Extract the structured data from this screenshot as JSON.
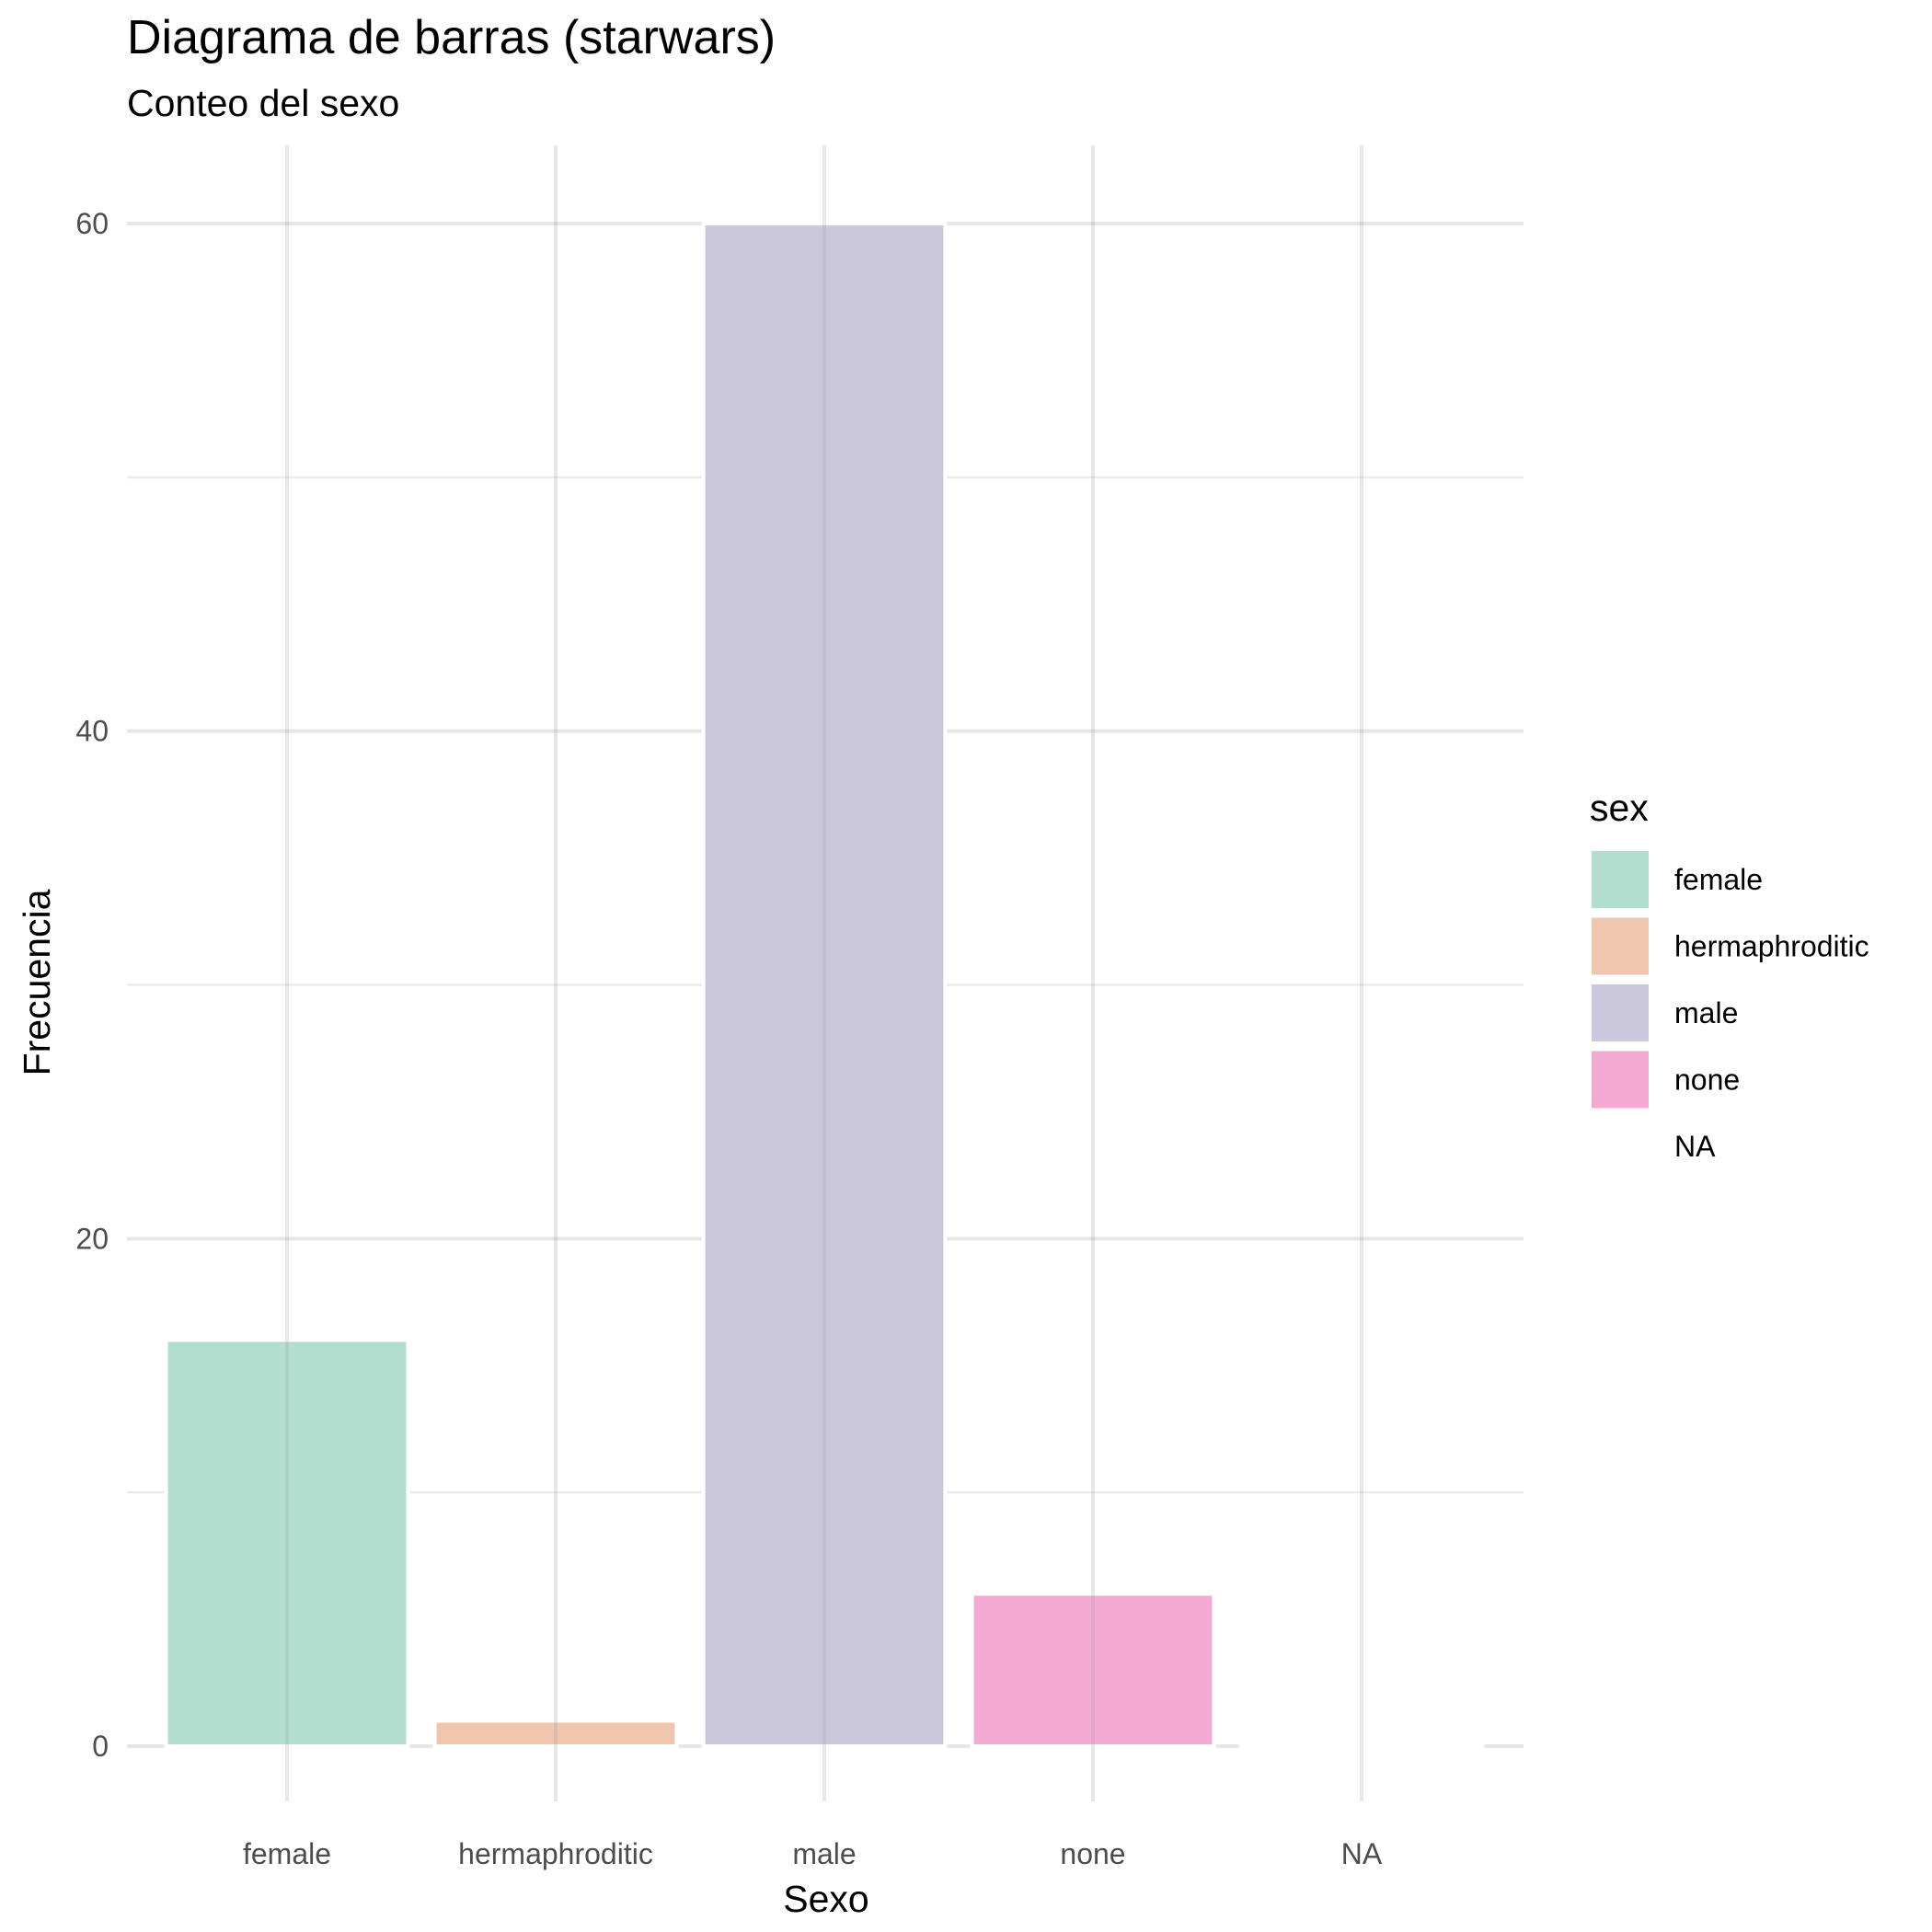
{
  "chart_data": {
    "type": "bar",
    "title": "Diagrama de barras (starwars)",
    "subtitle": "Conteo del sexo",
    "xlabel": "Sexo",
    "ylabel": "Frecuencia",
    "categories": [
      "female",
      "hermaphroditic",
      "male",
      "none",
      "NA"
    ],
    "values": [
      16,
      1,
      60,
      6,
      0
    ],
    "colors": [
      "#B3DDCF",
      "#EFC6AE",
      "#CBC8DE",
      "#F3AAD2",
      "#FFFFFF"
    ],
    "ylim": [
      0,
      60
    ],
    "yticks": [
      0,
      20,
      40,
      60
    ],
    "ytick_labels": [
      "0",
      "20",
      "40",
      "60"
    ],
    "grid": true,
    "legend": {
      "title": "sex",
      "position": "right",
      "entries": [
        "female",
        "hermaphroditic",
        "male",
        "none",
        "NA"
      ]
    }
  }
}
